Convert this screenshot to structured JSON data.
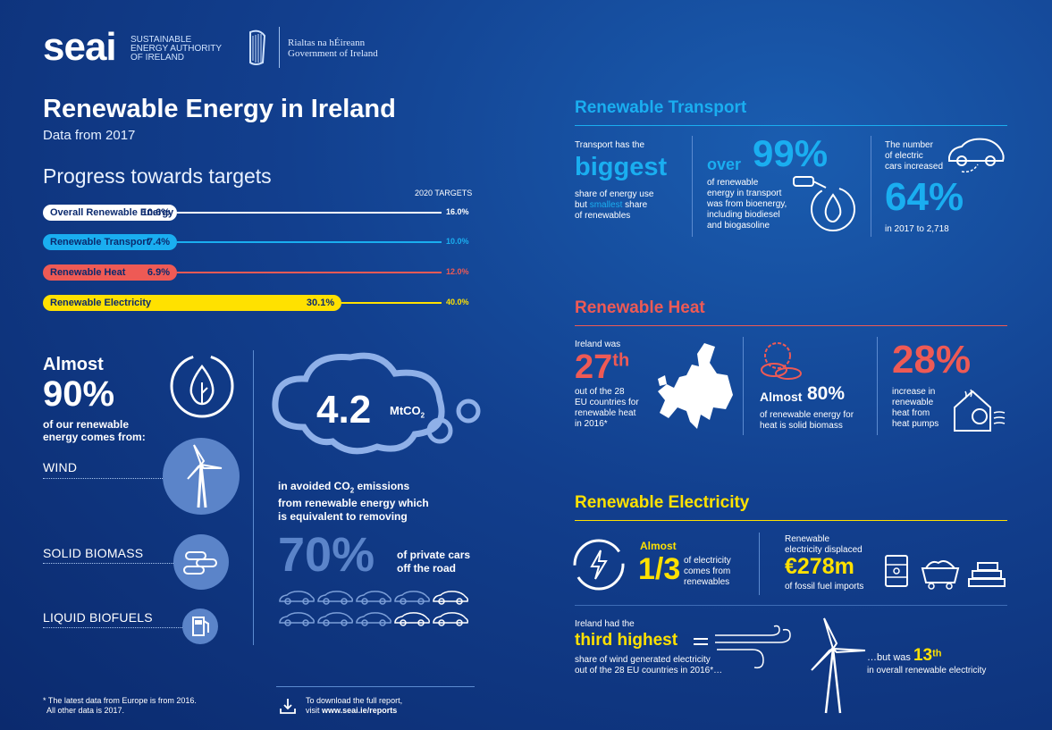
{
  "header": {
    "logo": "seai",
    "logo_sub": "SUSTAINABLE ENERGY AUTHORITY OF IRELAND",
    "gov_line1": "Rialtas na hÉireann",
    "gov_line2": "Government of Ireland"
  },
  "title": "Renewable Energy in Ireland",
  "subtitle": "Data from 2017",
  "progress": {
    "title": "Progress towards targets",
    "targets_label": "2020 TARGETS",
    "bars": [
      {
        "label": "Overall Renewable Energy",
        "value": "10.6%",
        "target": "16.0%",
        "fraction": 0.106,
        "target_fraction": 0.16,
        "color": "#ffffff",
        "text": "#0b2a6e"
      },
      {
        "label": "Renewable Transport",
        "value": "7.4%",
        "target": "10.0%",
        "fraction": 0.074,
        "target_fraction": 0.1,
        "color": "#1aaef0",
        "text": "#0b2a6e"
      },
      {
        "label": "Renewable Heat",
        "value": "6.9%",
        "target": "12.0%",
        "fraction": 0.069,
        "target_fraction": 0.12,
        "color": "#ee5a55",
        "text": "#0b2a6e"
      },
      {
        "label": "Renewable Electricity",
        "value": "30.1%",
        "target": "40.0%",
        "fraction": 0.301,
        "target_fraction": 0.4,
        "color": "#ffe100",
        "text": "#0b2a6e"
      }
    ]
  },
  "sources": {
    "almost": "Almost",
    "pct": "90%",
    "desc": "of our renewable energy comes from:",
    "items": [
      "WIND",
      "SOLID BIOMASS",
      "LIQUID BIOFUELS"
    ]
  },
  "emissions": {
    "value": "4.2",
    "unit": "MtCO",
    "unit_sub": "2",
    "desc1": "in avoided CO",
    "desc_sub": "2",
    "desc2": " emissions",
    "desc3": "from renewable energy which",
    "desc4": "is equivalent to removing",
    "cars_pct": "70%",
    "cars_desc1": "of private cars",
    "cars_desc2": "off the road"
  },
  "footer": {
    "note1": "* The latest data from Europe is from 2016.",
    "note2": "All other data is 2017.",
    "dl1": "To download the full report,",
    "dl2_prefix": "visit ",
    "dl2_link": "www.seai.ie/reports"
  },
  "transport": {
    "title": "Renewable Transport",
    "c1_l1": "Transport has the",
    "c1_big": "biggest",
    "c1_l2": "share of energy use",
    "c1_l3_prefix": "but ",
    "c1_l3_hl": "smallest",
    "c1_l3_suffix": " share",
    "c1_l4": "of renewables",
    "c2_over": "over",
    "c2_big": "99%",
    "c2_l1": "of renewable",
    "c2_l2": "energy in transport",
    "c2_l3": "was from bioenergy,",
    "c2_l4": "including biodiesel",
    "c2_l5": "and biogasoline",
    "c3_l1": "The number",
    "c3_l2": "of electric",
    "c3_l3": "cars increased",
    "c3_big": "64%",
    "c3_l4": "in 2017 to 2,718"
  },
  "heat": {
    "title": "Renewable Heat",
    "c1_l1": "Ireland was",
    "c1_big": "27",
    "c1_sup": "th",
    "c1_l2": "out of the 28",
    "c1_l3": "EU countries for",
    "c1_l4": "renewable heat",
    "c1_l5": "in 2016*",
    "c2_almost": "Almost",
    "c2_big": "80%",
    "c2_l1": "of renewable energy for",
    "c2_l2": "heat is solid biomass",
    "c3_big": "28%",
    "c3_l1": "increase in",
    "c3_l2": "renewable",
    "c3_l3": "heat from",
    "c3_l4": "heat pumps"
  },
  "electricity": {
    "title": "Renewable Electricity",
    "c1_almost": "Almost",
    "c1_frac": "1/3",
    "c1_l1": "of electricity",
    "c1_l2": "comes from",
    "c1_l3": "renewables",
    "c2_l1": "Renewable",
    "c2_l2": "electricity displaced",
    "c2_big": "€278m",
    "c2_l3": "of fossil fuel imports",
    "c3_l1": "Ireland had the",
    "c3_big": "third highest",
    "c3_l2": "share of wind generated electricity",
    "c3_l3": "out of the 28 EU countries in 2016*…",
    "c4_prefix": "…but was ",
    "c4_big": "13",
    "c4_sup": "th",
    "c4_l1": "in overall renewable electricity"
  },
  "colors": {
    "transport": "#1aaef0",
    "heat": "#ee5a55",
    "electricity": "#ffe100",
    "bg": "#123f8e"
  }
}
